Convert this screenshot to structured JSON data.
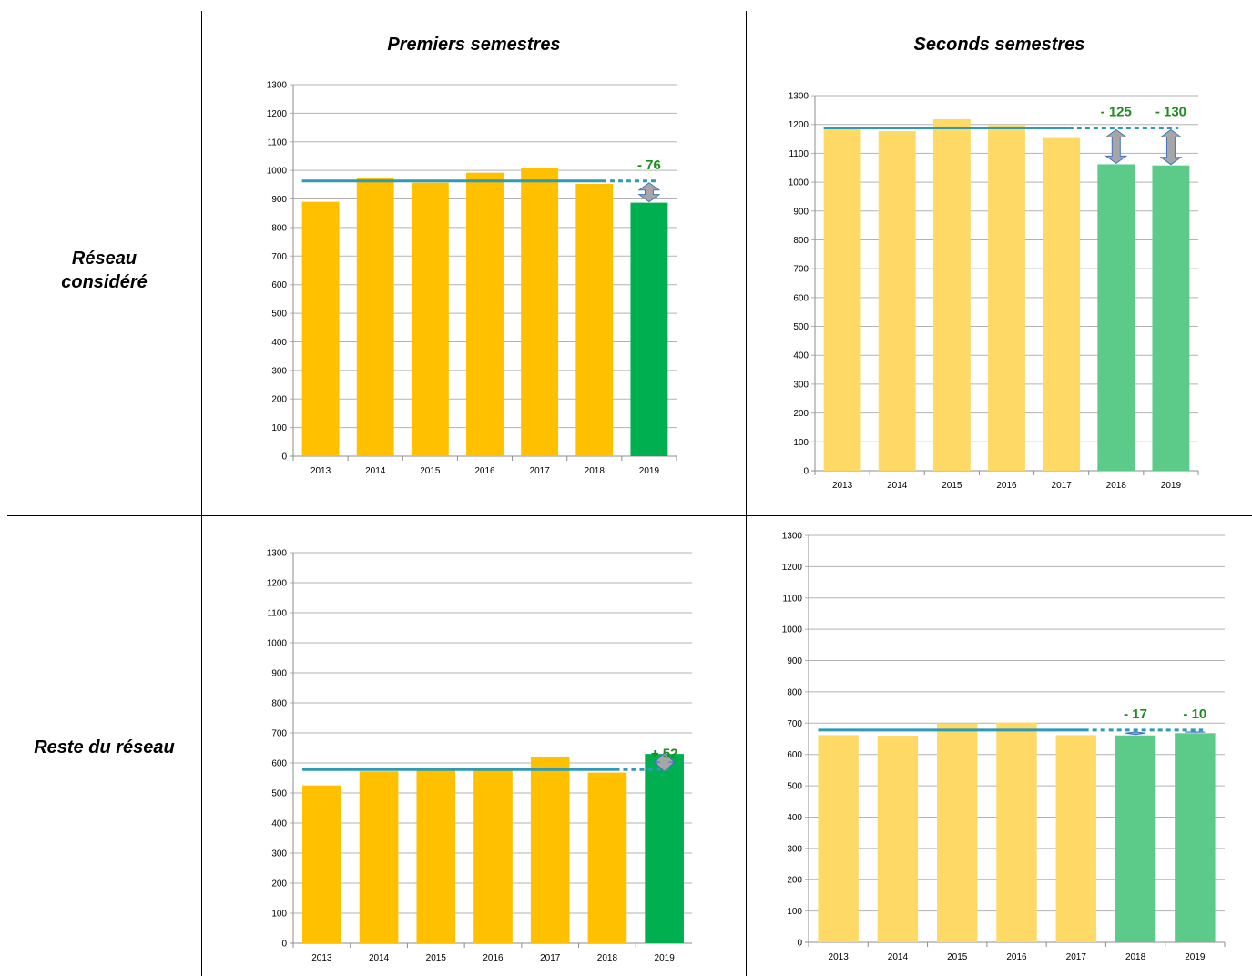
{
  "table": {
    "col_headers": [
      "Premiers semestres",
      "Seconds semestres"
    ],
    "row_headers": [
      [
        "Réseau",
        "considéré"
      ],
      [
        "Reste du réseau"
      ]
    ]
  },
  "colors": {
    "orange": "#FFC000",
    "orange_light": "#FFD966",
    "green": "#00B050",
    "green_light": "#5CCB8A",
    "avg_line": "#2E9AB4",
    "delta_text": "#1E8C1E",
    "arrow_fill": "#A6A6A6",
    "arrow_stroke": "#4472C4"
  },
  "chart_data": [
    {
      "type": "bar",
      "categories": [
        "2013",
        "2014",
        "2015",
        "2016",
        "2017",
        "2018",
        "2019"
      ],
      "values": [
        890,
        972,
        957,
        992,
        1008,
        953,
        887
      ],
      "ylim": [
        0,
        1300
      ],
      "yticks": [
        0,
        100,
        200,
        300,
        400,
        500,
        600,
        700,
        800,
        900,
        1000,
        1100,
        1200,
        1300
      ],
      "highlight_index": [
        6
      ],
      "average_line": 963,
      "deltas": [
        {
          "index": 6,
          "label": "- 76"
        }
      ],
      "grid": true
    },
    {
      "type": "bar",
      "categories": [
        "2013",
        "2014",
        "2015",
        "2016",
        "2017",
        "2018",
        "2019"
      ],
      "values": [
        1186,
        1177,
        1218,
        1197,
        1153,
        1062,
        1058
      ],
      "ylim": [
        0,
        1300
      ],
      "yticks": [
        0,
        100,
        200,
        300,
        400,
        500,
        600,
        700,
        800,
        900,
        1000,
        1100,
        1200,
        1300
      ],
      "highlight_index": [
        5,
        6
      ],
      "average_line": 1188,
      "deltas": [
        {
          "index": 5,
          "label": "- 125"
        },
        {
          "index": 6,
          "label": "- 130"
        }
      ],
      "grid": true
    },
    {
      "type": "bar",
      "categories": [
        "2013",
        "2014",
        "2015",
        "2016",
        "2017",
        "2018",
        "2019"
      ],
      "values": [
        525,
        572,
        585,
        575,
        620,
        568,
        630
      ],
      "ylim": [
        0,
        1300
      ],
      "yticks": [
        0,
        100,
        200,
        300,
        400,
        500,
        600,
        700,
        800,
        900,
        1000,
        1100,
        1200,
        1300
      ],
      "highlight_index": [
        6
      ],
      "average_line": 578,
      "deltas": [
        {
          "index": 6,
          "label": "+ 52"
        }
      ],
      "grid": true
    },
    {
      "type": "bar",
      "categories": [
        "2013",
        "2014",
        "2015",
        "2016",
        "2017",
        "2018",
        "2019"
      ],
      "values": [
        662,
        660,
        700,
        702,
        662,
        661,
        668
      ],
      "ylim": [
        0,
        1300
      ],
      "yticks": [
        0,
        100,
        200,
        300,
        400,
        500,
        600,
        700,
        800,
        900,
        1000,
        1100,
        1200,
        1300
      ],
      "highlight_index": [
        5,
        6
      ],
      "average_line": 678,
      "deltas": [
        {
          "index": 5,
          "label": "- 17"
        },
        {
          "index": 6,
          "label": "- 10"
        }
      ],
      "grid": true
    }
  ]
}
